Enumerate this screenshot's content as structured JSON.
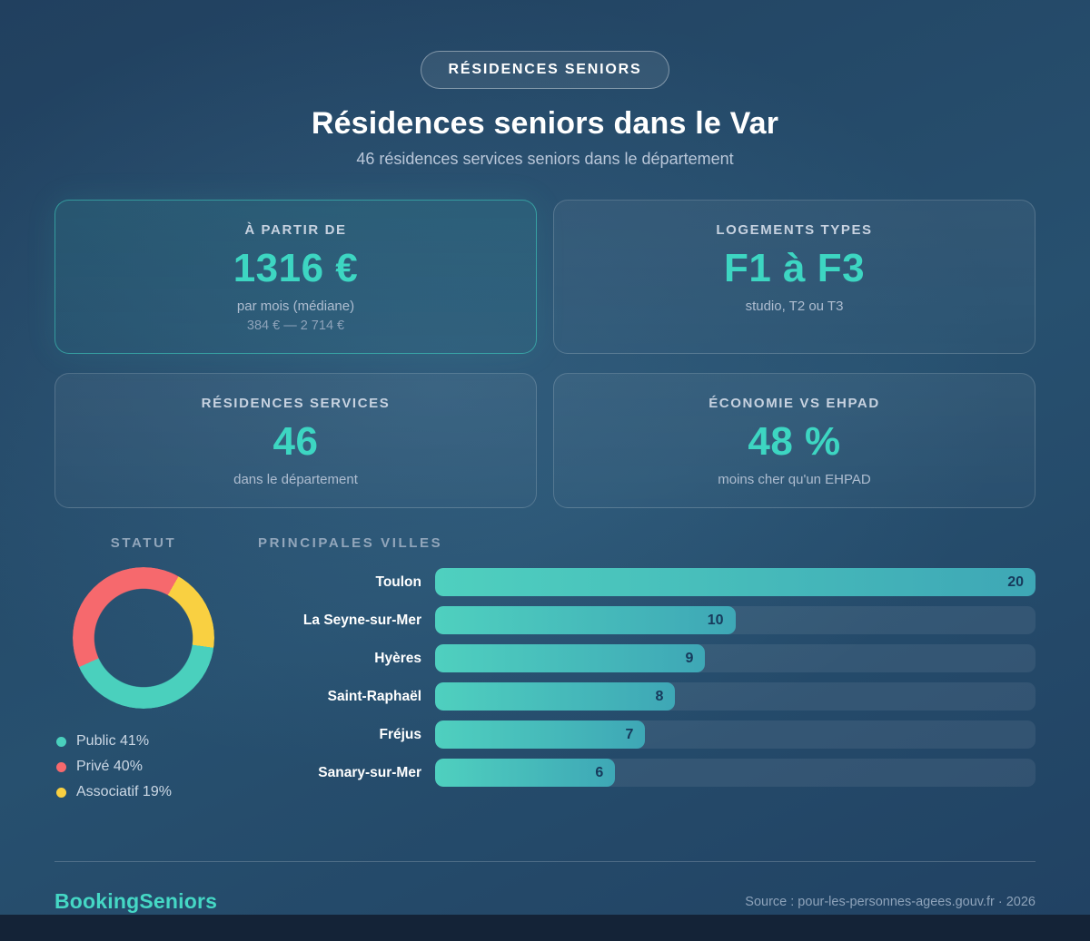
{
  "header": {
    "badge": "RÉSIDENCES SENIORS",
    "title": "Résidences seniors dans le Var",
    "subtitle": "46 résidences services seniors dans le département"
  },
  "cards": [
    {
      "label": "À PARTIR DE",
      "value": "1316 €",
      "sub": "par mois (médiane)",
      "range": "384 € — 2 714 €"
    },
    {
      "label": "LOGEMENTS TYPES",
      "value": "F1 à F3",
      "sub": "studio, T2 ou T3"
    },
    {
      "label": "RÉSIDENCES SERVICES",
      "value": "46",
      "sub": "dans le département"
    },
    {
      "label": "ÉCONOMIE VS EHPAD",
      "value": "48 %",
      "sub": "moins cher qu'un EHPAD"
    }
  ],
  "chart_data": [
    {
      "type": "pie",
      "donut": true,
      "title": "STATUT",
      "labels": [
        "Public",
        "Privé",
        "Associatif"
      ],
      "values": [
        41,
        40,
        19
      ],
      "colors": [
        "#4ad0bd",
        "#f6696d",
        "#f9d041"
      ],
      "start_angle_deg": 98,
      "legend_position": "bottom-left",
      "legend_suffix": "%"
    },
    {
      "type": "bar",
      "orientation": "horizontal",
      "title": "PRINCIPALES VILLES",
      "categories": [
        "Toulon",
        "La Seyne-sur-Mer",
        "Hyères",
        "Saint-Raphaël",
        "Fréjus",
        "Sanary-sur-Mer"
      ],
      "values": [
        20,
        10,
        9,
        8,
        7,
        6
      ],
      "xlim": [
        0,
        20
      ],
      "bar_colors": [
        "#4fd0bf",
        "#3ea7b6"
      ],
      "value_label_position": "inside-right"
    }
  ],
  "footer": {
    "brand": "BookingSeniors",
    "source": "Source : pour-les-personnes-agees.gouv.fr · 2026"
  },
  "colors": {
    "accent": "#3dd6c2",
    "background_top": "#21405f",
    "background_mid": "#27506f",
    "text_primary": "#ffffff",
    "text_muted": "#8ea3ba"
  }
}
